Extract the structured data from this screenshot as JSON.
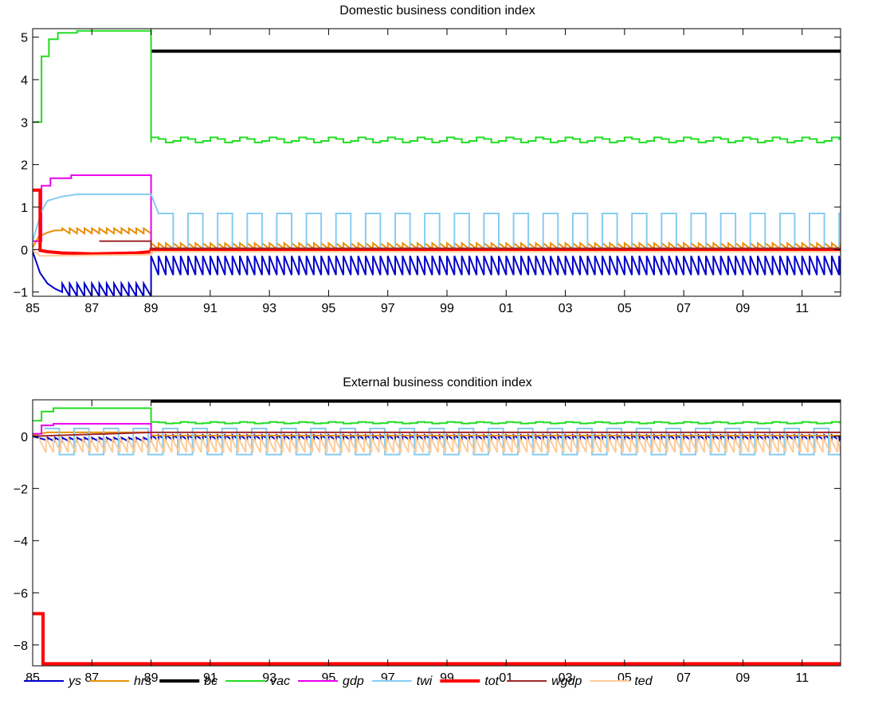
{
  "chart_data": [
    {
      "type": "line",
      "title": "Domestic business condition index",
      "xlim": [
        1985,
        2012.3
      ],
      "ylim": [
        -1.1,
        5.2
      ],
      "xticks": [
        "85",
        "87",
        "89",
        "91",
        "93",
        "95",
        "97",
        "99",
        "01",
        "03",
        "05",
        "07",
        "09",
        "11"
      ],
      "xtick_values": [
        1985,
        1987,
        1989,
        1991,
        1993,
        1995,
        1997,
        1999,
        2001,
        2003,
        2005,
        2007,
        2009,
        2011
      ],
      "yticks": [
        "−1",
        "0",
        "1",
        "2",
        "3",
        "4",
        "5"
      ],
      "ytick_values": [
        -1,
        0,
        1,
        2,
        3,
        4,
        5
      ],
      "series": [
        {
          "name": "ys",
          "color": "#0000cc",
          "style": "decay_saw",
          "steps": [
            [
              1985.0,
              -0.05
            ],
            [
              1985.25,
              -0.55
            ],
            [
              1985.5,
              -0.8
            ],
            [
              1985.75,
              -0.92
            ],
            [
              1986.0,
              -1.0
            ]
          ],
          "saw": [
            1986.0,
            1989.0,
            0.25,
            -0.8,
            -1.1
          ],
          "saw2": [
            1989.0,
            2012.3,
            0.25,
            -0.15,
            -0.6
          ]
        },
        {
          "name": "hrs",
          "color": "#e8900a",
          "style": "step_saw",
          "steps": [
            [
              1985.0,
              0.05
            ],
            [
              1985.2,
              0.3
            ],
            [
              1985.5,
              0.4
            ],
            [
              1985.75,
              0.45
            ],
            [
              1986.0,
              0.45
            ]
          ],
          "saw": [
            1986.0,
            1989.0,
            0.25,
            0.5,
            0.38
          ],
          "saw2": [
            1989.0,
            2012.3,
            0.25,
            0.15,
            0.02
          ]
        },
        {
          "name": "bc",
          "color": "#000000",
          "width": 4,
          "points": [
            [
              1989.0,
              4.67
            ],
            [
              2012.3,
              4.67
            ]
          ]
        },
        {
          "name": "vac",
          "color": "#22dd22",
          "style": "steps",
          "steps": [
            [
              1985.0,
              3.0
            ],
            [
              1985.3,
              3.0
            ],
            [
              1985.3,
              4.55
            ],
            [
              1985.55,
              4.55
            ],
            [
              1985.55,
              4.95
            ],
            [
              1985.85,
              4.95
            ],
            [
              1985.85,
              5.1
            ],
            [
              1986.5,
              5.1
            ],
            [
              1986.5,
              5.15
            ],
            [
              1989.0,
              5.15
            ],
            [
              1989.0,
              2.52
            ]
          ],
          "wave": [
            1989.0,
            2012.3,
            0.25,
            2.58,
            0.06
          ]
        },
        {
          "name": "gdp",
          "color": "#ee00ee",
          "style": "steps",
          "steps": [
            [
              1985.0,
              0.2
            ],
            [
              1985.3,
              0.2
            ],
            [
              1985.3,
              1.5
            ],
            [
              1985.6,
              1.5
            ],
            [
              1985.6,
              1.68
            ],
            [
              1986.3,
              1.68
            ],
            [
              1986.3,
              1.75
            ],
            [
              1989.0,
              1.75
            ],
            [
              1989.0,
              0.0
            ]
          ]
        },
        {
          "name": "twi",
          "color": "#88ccf0",
          "style": "steps_square",
          "steps": [
            [
              1985.0,
              0.2
            ],
            [
              1985.3,
              0.9
            ],
            [
              1985.5,
              1.15
            ],
            [
              1985.75,
              1.2
            ],
            [
              1986.0,
              1.25
            ],
            [
              1986.5,
              1.3
            ],
            [
              1989.0,
              1.3
            ],
            [
              1989.0,
              1.3
            ],
            [
              1989.25,
              0.85
            ]
          ],
          "square": [
            1989.25,
            2012.3,
            0.5,
            0.85,
            0.02
          ]
        },
        {
          "name": "tot",
          "color": "#ff0000",
          "width": 4,
          "style": "steps",
          "steps": [
            [
              1985.0,
              1.4
            ],
            [
              1985.25,
              1.4
            ],
            [
              1985.25,
              -0.02
            ],
            [
              1985.5,
              -0.05
            ],
            [
              1986.0,
              -0.08
            ],
            [
              1987.0,
              -0.1
            ],
            [
              1988.5,
              -0.08
            ],
            [
              1989.0,
              -0.05
            ],
            [
              1989.0,
              0.0
            ],
            [
              2012.3,
              0.0
            ]
          ]
        },
        {
          "name": "wgdp",
          "color": "#a0282a",
          "style": "steps",
          "steps": [
            [
              1987.25,
              0.2
            ],
            [
              1989.0,
              0.2
            ],
            [
              1989.0,
              0.03
            ],
            [
              2012.3,
              0.03
            ]
          ]
        },
        {
          "name": "ted",
          "color": "#ffcc99",
          "style": "steps",
          "steps": [
            [
              1985.0,
              0.0
            ],
            [
              1985.25,
              -0.15
            ],
            [
              1989.0,
              -0.12
            ],
            [
              1989.0,
              -0.05
            ],
            [
              2012.3,
              -0.05
            ]
          ]
        }
      ]
    },
    {
      "type": "line",
      "title": "External business condition index",
      "xlim": [
        1985,
        2012.3
      ],
      "ylim": [
        -8.8,
        1.4
      ],
      "xticks": [
        "85",
        "87",
        "89",
        "91",
        "93",
        "95",
        "97",
        "99",
        "01",
        "03",
        "05",
        "07",
        "09",
        "11"
      ],
      "xtick_values": [
        1985,
        1987,
        1989,
        1991,
        1993,
        1995,
        1997,
        1999,
        2001,
        2003,
        2005,
        2007,
        2009,
        2011
      ],
      "yticks": [
        "−8",
        "−6",
        "−4",
        "−2",
        "0"
      ],
      "ytick_values": [
        -8,
        -6,
        -4,
        -2,
        0
      ],
      "series": [
        {
          "name": "ys",
          "color": "#0000cc",
          "style": "decay_saw",
          "steps": [
            [
              1985.0,
              0.0
            ],
            [
              1985.5,
              -0.15
            ]
          ],
          "saw": [
            1985.5,
            1989.0,
            0.25,
            -0.05,
            -0.2
          ],
          "saw2": [
            1989.0,
            2012.3,
            0.25,
            0.05,
            -0.15
          ]
        },
        {
          "name": "hrs",
          "color": "#e8900a",
          "style": "steps",
          "steps": [
            [
              1985.0,
              0.05
            ],
            [
              1985.5,
              0.15
            ],
            [
              1989.0,
              0.15
            ],
            [
              1989.0,
              0.03
            ],
            [
              2012.3,
              0.03
            ]
          ]
        },
        {
          "name": "bc",
          "color": "#000000",
          "width": 4,
          "points": [
            [
              1989.0,
              1.35
            ],
            [
              2012.3,
              1.35
            ]
          ]
        },
        {
          "name": "vac",
          "color": "#22dd22",
          "style": "steps",
          "steps": [
            [
              1985.0,
              0.6
            ],
            [
              1985.3,
              0.6
            ],
            [
              1985.3,
              0.95
            ],
            [
              1985.7,
              0.95
            ],
            [
              1985.7,
              1.08
            ],
            [
              1989.0,
              1.08
            ],
            [
              1989.0,
              0.5
            ]
          ],
          "wave": [
            1989.0,
            2012.3,
            0.25,
            0.52,
            0.03
          ]
        },
        {
          "name": "gdp",
          "color": "#ee00ee",
          "style": "steps",
          "steps": [
            [
              1985.0,
              0.1
            ],
            [
              1985.3,
              0.1
            ],
            [
              1985.3,
              0.42
            ],
            [
              1985.7,
              0.42
            ],
            [
              1985.7,
              0.48
            ],
            [
              1989.0,
              0.48
            ],
            [
              1989.0,
              0.0
            ]
          ]
        },
        {
          "name": "twi",
          "color": "#88ccf0",
          "style": "square_only",
          "square": [
            1985.4,
            2012.3,
            0.5,
            0.3,
            -0.7
          ]
        },
        {
          "name": "tot",
          "color": "#ff0000",
          "width": 4,
          "style": "steps",
          "steps": [
            [
              1985.0,
              -6.8
            ],
            [
              1985.35,
              -6.8
            ],
            [
              1985.35,
              -8.72
            ],
            [
              2012.3,
              -8.72
            ]
          ]
        },
        {
          "name": "wgdp",
          "color": "#a0282a",
          "style": "steps",
          "steps": [
            [
              1985.0,
              0.0
            ],
            [
              1989.0,
              0.15
            ],
            [
              2012.3,
              0.15
            ]
          ]
        },
        {
          "name": "ted",
          "color": "#ffcc99",
          "style": "saw_only",
          "saw": [
            1985.2,
            2012.3,
            0.25,
            -0.05,
            -0.62
          ]
        }
      ]
    }
  ],
  "legend": [
    {
      "name": "ys",
      "color": "#0000cc",
      "width": 2
    },
    {
      "name": "hrs",
      "color": "#e8900a",
      "width": 2
    },
    {
      "name": "bc",
      "color": "#000000",
      "width": 4
    },
    {
      "name": "vac",
      "color": "#22dd22",
      "width": 2
    },
    {
      "name": "gdp",
      "color": "#ee00ee",
      "width": 2
    },
    {
      "name": "twi",
      "color": "#88ccf0",
      "width": 2
    },
    {
      "name": "tot",
      "color": "#ff0000",
      "width": 4
    },
    {
      "name": "wgdp",
      "color": "#a0282a",
      "width": 2
    },
    {
      "name": "ted",
      "color": "#ffcc99",
      "width": 2
    }
  ]
}
